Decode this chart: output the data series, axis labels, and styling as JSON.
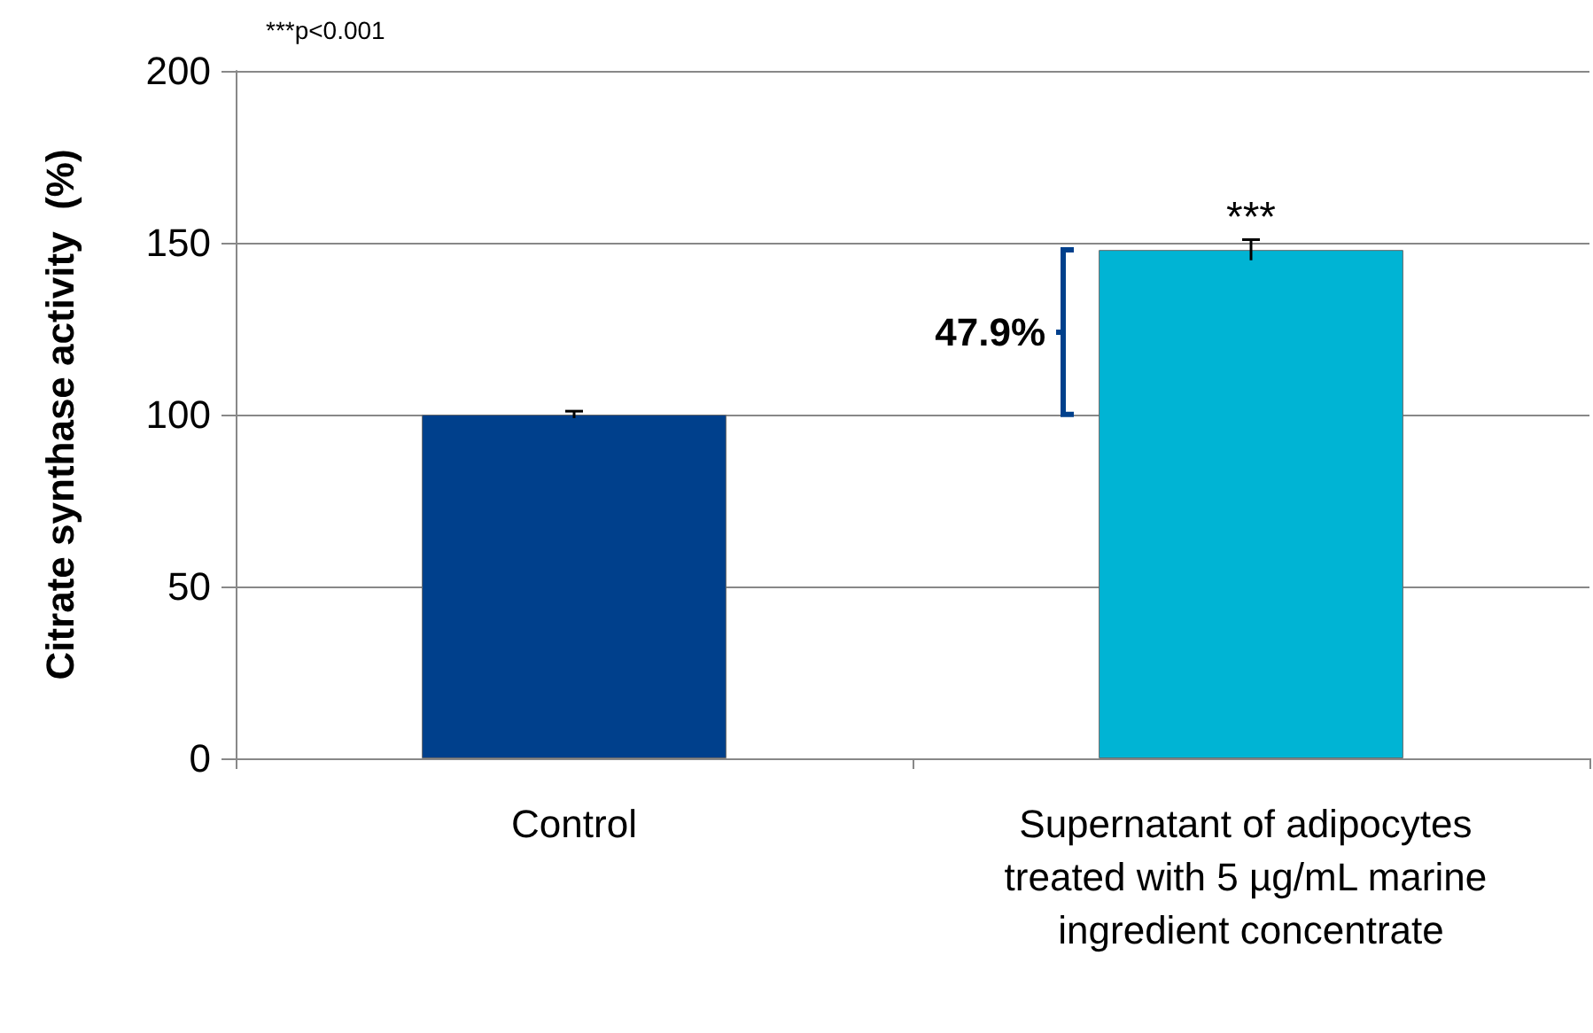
{
  "chart_data": {
    "type": "bar",
    "ylabel": "Citrate synthase activity  (%)",
    "categories": [
      "Control",
      "Supernatant of adipocytes treated with 5 µg/mL marine ingredient concentrate"
    ],
    "values": [
      100,
      147.9
    ],
    "colors": [
      "#00408c",
      "#00b4d4"
    ],
    "errors": [
      1,
      3
    ],
    "ylim": [
      0,
      200
    ],
    "yticks": [
      0,
      50,
      100,
      150,
      200
    ],
    "grid": "y",
    "annotations": [
      "***p<0.001",
      {
        "text": "***",
        "x": "Supernatant of adipocytes treated with 5 µg/mL marine ingredient concentrate",
        "y": 151
      },
      "47.9%"
    ]
  }
}
